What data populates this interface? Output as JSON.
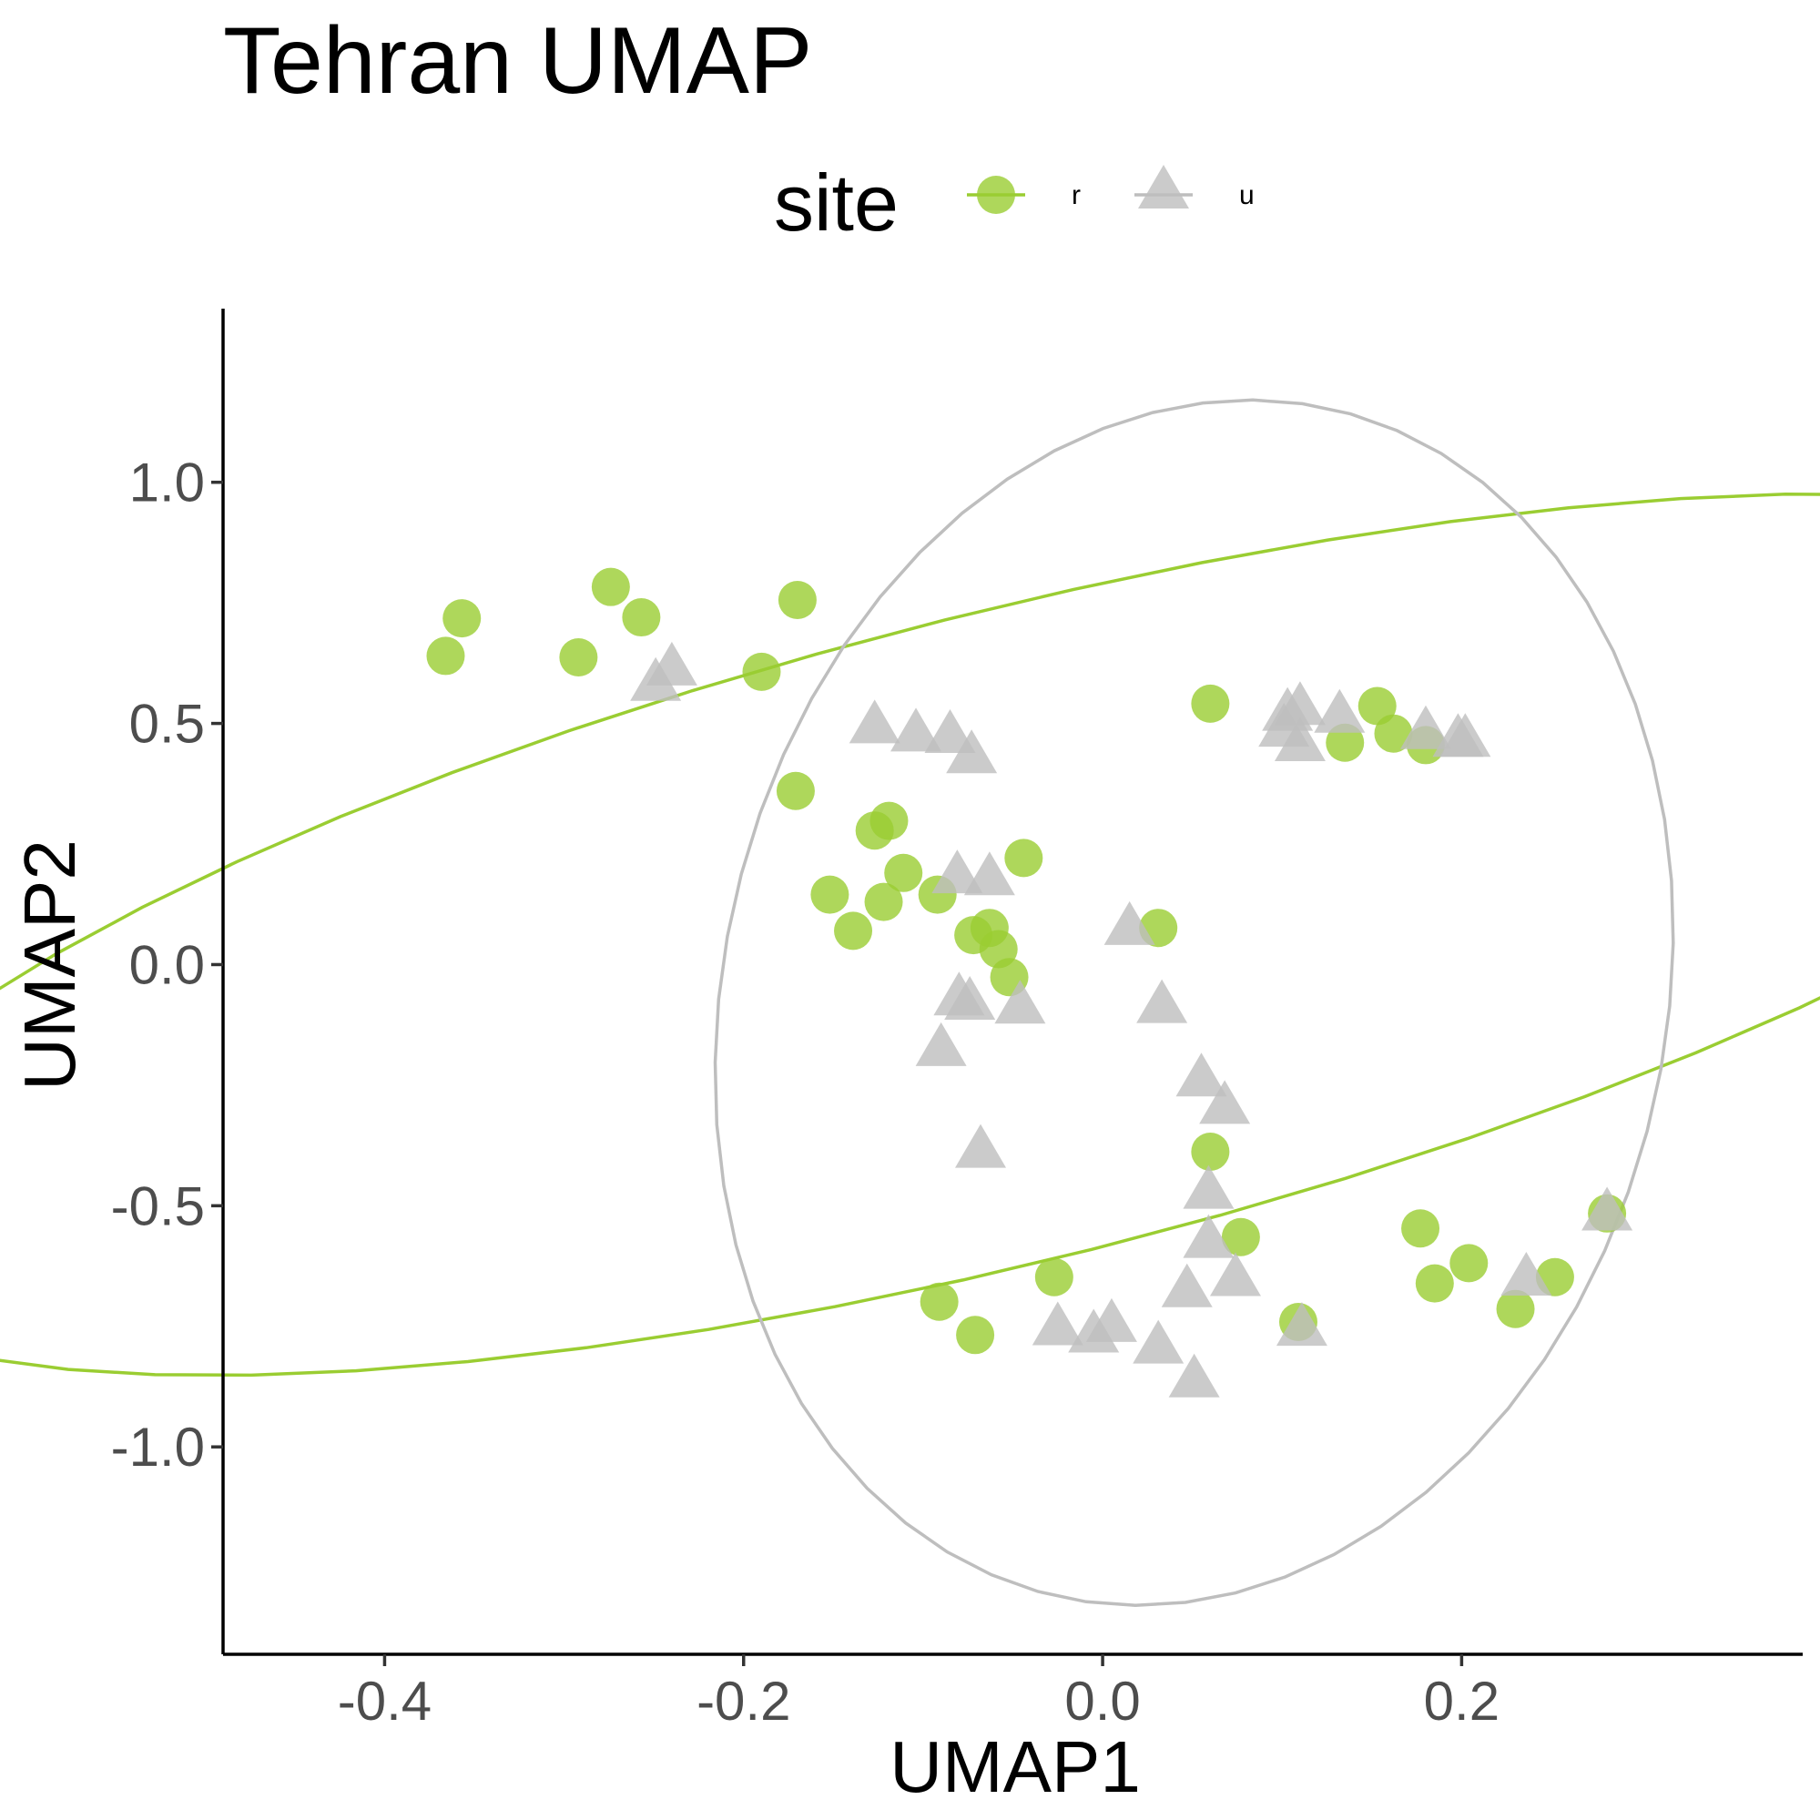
{
  "chart_data": {
    "type": "scatter",
    "title": "Tehran UMAP",
    "xlabel": "UMAP1",
    "ylabel": "UMAP2",
    "xlim": [
      -0.49,
      0.39
    ],
    "ylim": [
      -1.43,
      1.36
    ],
    "x_ticks": [
      {
        "value": -0.4,
        "label": "-0.4"
      },
      {
        "value": -0.2,
        "label": "-0.2"
      },
      {
        "value": 0.0,
        "label": "0.0"
      },
      {
        "value": 0.2,
        "label": "0.2"
      }
    ],
    "y_ticks": [
      {
        "value": 1.0,
        "label": "1.0"
      },
      {
        "value": 0.5,
        "label": "0.5"
      },
      {
        "value": 0.0,
        "label": "0.0"
      },
      {
        "value": -0.5,
        "label": "-0.5"
      },
      {
        "value": -1.0,
        "label": "-1.0"
      }
    ],
    "grid": false,
    "legend": {
      "title": "site",
      "position": "top"
    },
    "series": [
      {
        "name": "r",
        "marker": "circle",
        "color": "#9acd32",
        "ellipse": {
          "cx": -0.047,
          "cy": 0.062,
          "rx": 0.45,
          "ry": 1.05,
          "rotate_deg": -33
        },
        "points": [
          [
            -0.366,
            0.64
          ],
          [
            -0.357,
            0.718
          ],
          [
            -0.274,
            0.783
          ],
          [
            -0.257,
            0.72
          ],
          [
            -0.292,
            0.637
          ],
          [
            -0.17,
            0.756
          ],
          [
            -0.19,
            0.607
          ],
          [
            -0.171,
            0.36
          ],
          [
            -0.119,
            0.298
          ],
          [
            -0.127,
            0.278
          ],
          [
            -0.111,
            0.19
          ],
          [
            -0.152,
            0.145
          ],
          [
            -0.122,
            0.13
          ],
          [
            -0.092,
            0.145
          ],
          [
            -0.139,
            0.07
          ],
          [
            -0.044,
            0.221
          ],
          [
            -0.063,
            0.076
          ],
          [
            -0.072,
            0.061
          ],
          [
            -0.058,
            0.032
          ],
          [
            -0.052,
            -0.026
          ],
          [
            0.031,
            0.076
          ],
          [
            0.06,
            0.541
          ],
          [
            0.153,
            0.536
          ],
          [
            0.162,
            0.479
          ],
          [
            0.135,
            0.46
          ],
          [
            0.18,
            0.455
          ],
          [
            0.06,
            -0.388
          ],
          [
            0.077,
            -0.565
          ],
          [
            0.177,
            -0.547
          ],
          [
            0.185,
            -0.661
          ],
          [
            0.204,
            -0.619
          ],
          [
            0.23,
            -0.714
          ],
          [
            0.252,
            -0.648
          ],
          [
            0.281,
            -0.516
          ],
          [
            0.109,
            -0.741
          ],
          [
            -0.027,
            -0.648
          ],
          [
            -0.091,
            -0.699
          ],
          [
            -0.071,
            -0.768
          ]
        ]
      },
      {
        "name": "u",
        "marker": "triangle",
        "color": "#bebebe",
        "ellipse": {
          "cx": 0.051,
          "cy": -0.079,
          "rx": 0.265,
          "ry": 1.25,
          "rotate_deg": -1.5
        },
        "points": [
          [
            -0.24,
            0.609
          ],
          [
            -0.249,
            0.577
          ],
          [
            -0.127,
            0.489
          ],
          [
            -0.104,
            0.472
          ],
          [
            -0.085,
            0.469
          ],
          [
            -0.073,
            0.427
          ],
          [
            0.103,
            0.515
          ],
          [
            0.11,
            0.527
          ],
          [
            0.132,
            0.511
          ],
          [
            0.101,
            0.482
          ],
          [
            0.11,
            0.452
          ],
          [
            0.18,
            0.477
          ],
          [
            0.198,
            0.461
          ],
          [
            0.202,
            0.461
          ],
          [
            -0.081,
            0.178
          ],
          [
            -0.063,
            0.174
          ],
          [
            0.015,
            0.071
          ],
          [
            -0.08,
            -0.075
          ],
          [
            -0.074,
            -0.084
          ],
          [
            -0.046,
            -0.092
          ],
          [
            0.033,
            -0.091
          ],
          [
            -0.09,
            -0.18
          ],
          [
            0.055,
            -0.243
          ],
          [
            0.068,
            -0.3
          ],
          [
            -0.068,
            -0.391
          ],
          [
            0.059,
            -0.476
          ],
          [
            0.059,
            -0.578
          ],
          [
            0.047,
            -0.68
          ],
          [
            0.074,
            -0.657
          ],
          [
            -0.025,
            -0.759
          ],
          [
            -0.005,
            -0.774
          ],
          [
            0.005,
            -0.752
          ],
          [
            0.031,
            -0.797
          ],
          [
            0.051,
            -0.867
          ],
          [
            0.111,
            -0.76
          ],
          [
            0.236,
            -0.656
          ],
          [
            0.281,
            -0.521
          ]
        ]
      }
    ]
  }
}
